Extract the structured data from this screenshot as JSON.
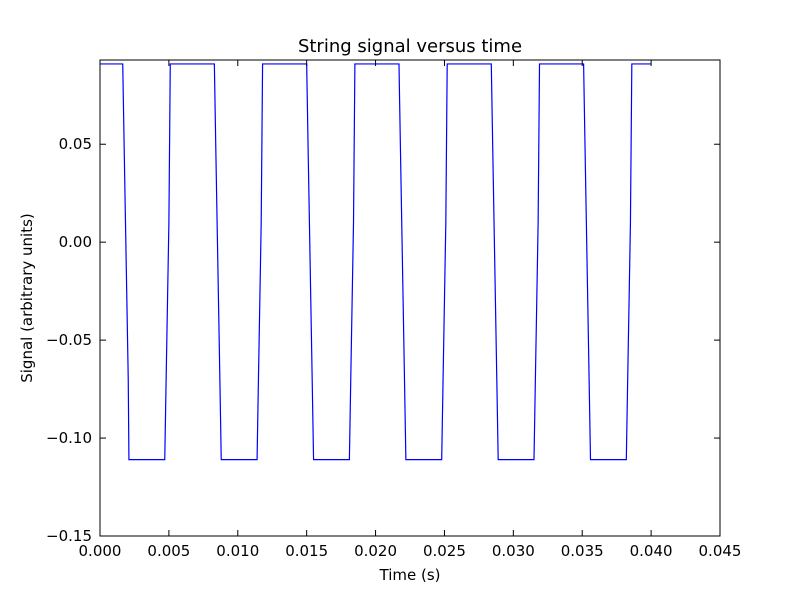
{
  "chart_data": {
    "type": "line",
    "title": "String signal versus time",
    "xlabel": "Time (s)",
    "ylabel": "Signal (arbitrary units)",
    "xlim": [
      0.0,
      0.045
    ],
    "ylim": [
      -0.15,
      0.093
    ],
    "xticks": [
      0.0,
      0.005,
      0.01,
      0.015,
      0.02,
      0.025,
      0.03,
      0.035,
      0.04,
      0.045
    ],
    "xtick_labels": [
      "0.000",
      "0.005",
      "0.010",
      "0.015",
      "0.020",
      "0.025",
      "0.030",
      "0.035",
      "0.040",
      "0.045"
    ],
    "yticks": [
      -0.15,
      -0.1,
      -0.05,
      0.0,
      0.05
    ],
    "ytick_labels": [
      "−0.15",
      "−0.10",
      "−0.05",
      "0.00",
      "0.05"
    ],
    "grid": false,
    "series": [
      {
        "color": "#0000ff",
        "x": [
          0.0,
          0.00165,
          0.00175,
          0.00185,
          0.00195,
          0.00205,
          0.0021,
          0.0047,
          0.0048,
          0.0049,
          0.005,
          0.0051,
          0.0083,
          0.0084,
          0.0085,
          0.0086,
          0.0087,
          0.0088,
          0.0114,
          0.0115,
          0.0116,
          0.0117,
          0.0118,
          0.015,
          0.0151,
          0.0152,
          0.0153,
          0.0154,
          0.0155,
          0.0181,
          0.0182,
          0.0183,
          0.0184,
          0.0185,
          0.0217,
          0.0218,
          0.0219,
          0.022,
          0.0221,
          0.0222,
          0.0248,
          0.0249,
          0.025,
          0.0251,
          0.0252,
          0.0284,
          0.0285,
          0.0286,
          0.0287,
          0.0288,
          0.0289,
          0.0315,
          0.0316,
          0.0317,
          0.0318,
          0.0319,
          0.0351,
          0.0352,
          0.0353,
          0.0354,
          0.0355,
          0.0356,
          0.0382,
          0.0383,
          0.0384,
          0.0385,
          0.0386,
          0.04
        ],
        "y": [
          0.091,
          0.091,
          0.05,
          0.01,
          -0.03,
          -0.07,
          -0.111,
          -0.111,
          -0.07,
          -0.03,
          0.01,
          0.091,
          0.091,
          0.05,
          0.01,
          -0.03,
          -0.07,
          -0.111,
          -0.111,
          -0.07,
          -0.03,
          0.01,
          0.091,
          0.091,
          0.05,
          0.01,
          -0.03,
          -0.07,
          -0.111,
          -0.111,
          -0.07,
          -0.03,
          0.01,
          0.091,
          0.091,
          0.05,
          0.01,
          -0.03,
          -0.07,
          -0.111,
          -0.111,
          -0.07,
          -0.03,
          0.01,
          0.091,
          0.091,
          0.05,
          0.01,
          -0.03,
          -0.07,
          -0.111,
          -0.111,
          -0.07,
          -0.03,
          0.01,
          0.091,
          0.091,
          0.05,
          0.01,
          -0.03,
          -0.07,
          -0.111,
          -0.111,
          -0.07,
          -0.03,
          0.01,
          0.091,
          0.091
        ]
      }
    ]
  }
}
